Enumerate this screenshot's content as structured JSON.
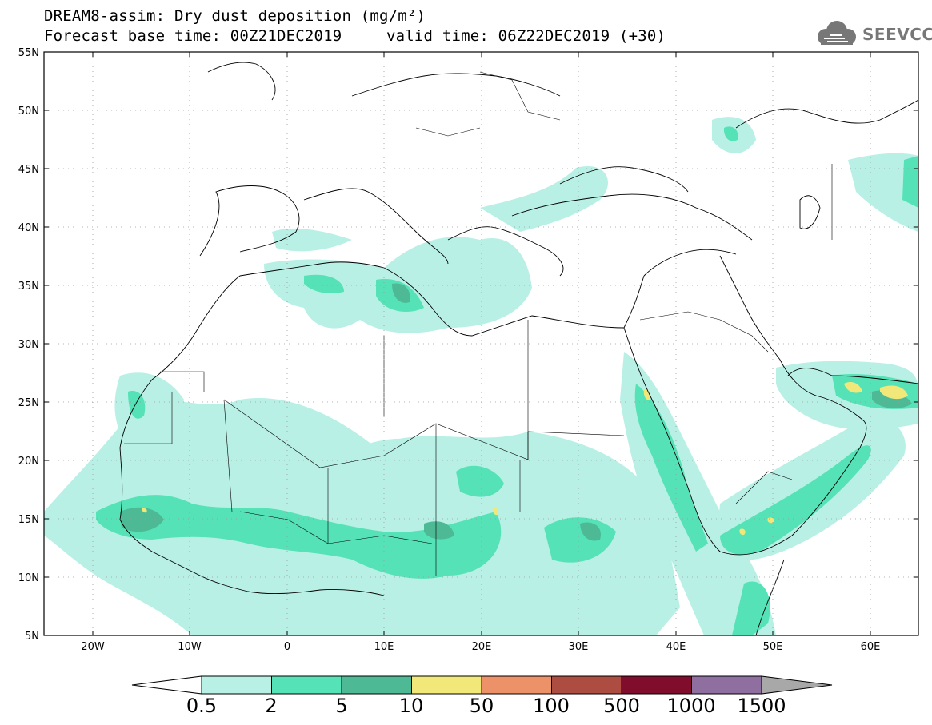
{
  "header": {
    "title_line1": "DREAM8-assim: Dry dust deposition (mg/m²)",
    "base_time": "Forecast base time: 00Z21DEC2019",
    "valid_time": "valid time: 06Z22DEC2019 (+30)"
  },
  "logo": {
    "text": "SEEVCCC",
    "icon": "cloud-logo-icon"
  },
  "map_axes": {
    "lat_labels": [
      "55N",
      "50N",
      "45N",
      "40N",
      "35N",
      "30N",
      "25N",
      "20N",
      "15N",
      "10N",
      "5N"
    ],
    "lon_labels": [
      "20W",
      "10W",
      "0",
      "10E",
      "20E",
      "30E",
      "40E",
      "50E",
      "60E"
    ],
    "lat_range": [
      5,
      55
    ],
    "lon_range": [
      -25,
      65
    ],
    "grid": "dotted"
  },
  "colorbar": {
    "labels": [
      "0.5",
      "2",
      "5",
      "10",
      "50",
      "100",
      "500",
      "1000",
      "1500"
    ],
    "colors": [
      "#b9f0e6",
      "#56e2b7",
      "#4dba95",
      "#f2e87a",
      "#ec9168",
      "#ad4c40",
      "#800d2b",
      "#8f6ea0"
    ],
    "under_color": "#ffffff",
    "over_color": "#a8a8a8"
  },
  "colors": {
    "coast": "#000000",
    "background": "#ffffff"
  }
}
